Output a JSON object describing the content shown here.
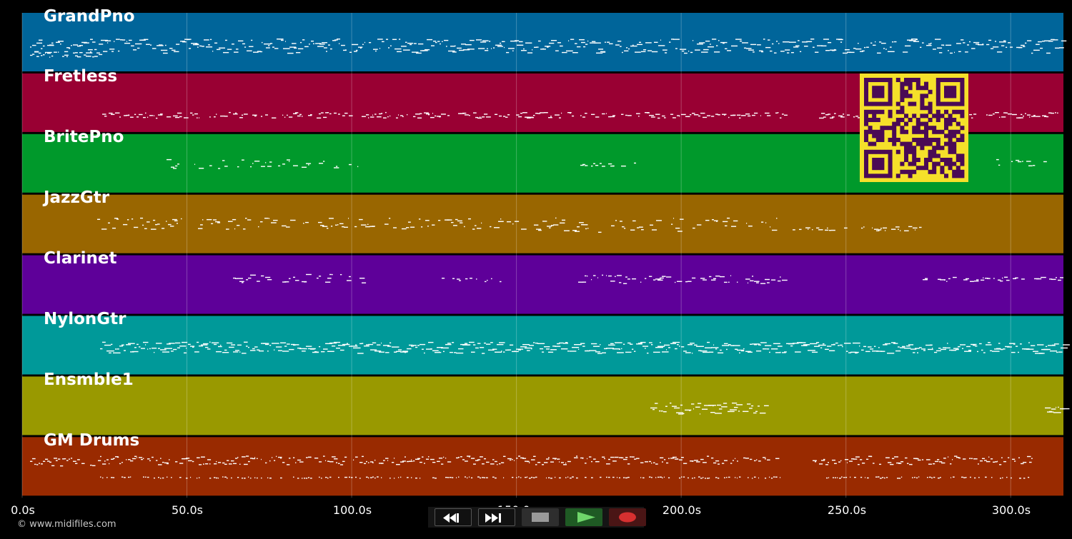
{
  "tracks": [
    {
      "name": "GrandPno",
      "color": "#00659a"
    },
    {
      "name": "Fretless",
      "color": "#990033"
    },
    {
      "name": "BritePno",
      "color": "#00992b"
    },
    {
      "name": "JazzGtr",
      "color": "#996600"
    },
    {
      "name": "Clarinet",
      "color": "#5e0099"
    },
    {
      "name": "NylonGtr",
      "color": "#009999"
    },
    {
      "name": "Ensmble1",
      "color": "#999900"
    },
    {
      "name": "GM Drums",
      "color": "#992a00"
    }
  ],
  "timeline": {
    "ticks": [
      "0.0s",
      "50.0s",
      "100.0s",
      "150.0s",
      "200.0s",
      "250.0s",
      "300.0s"
    ],
    "tick_values": [
      0,
      50,
      100,
      150,
      200,
      250,
      300
    ],
    "max_seconds": 316
  },
  "copyright": "© www.midifiles.com",
  "transport": {
    "rewind_icon": "rewind-icon",
    "forward_icon": "fast-forward-icon",
    "stop_icon": "stop-icon",
    "play_icon": "play-icon",
    "record_icon": "record-icon"
  },
  "qr_code": {
    "fg": "#4a0a55",
    "bg": "#f5e02a"
  }
}
